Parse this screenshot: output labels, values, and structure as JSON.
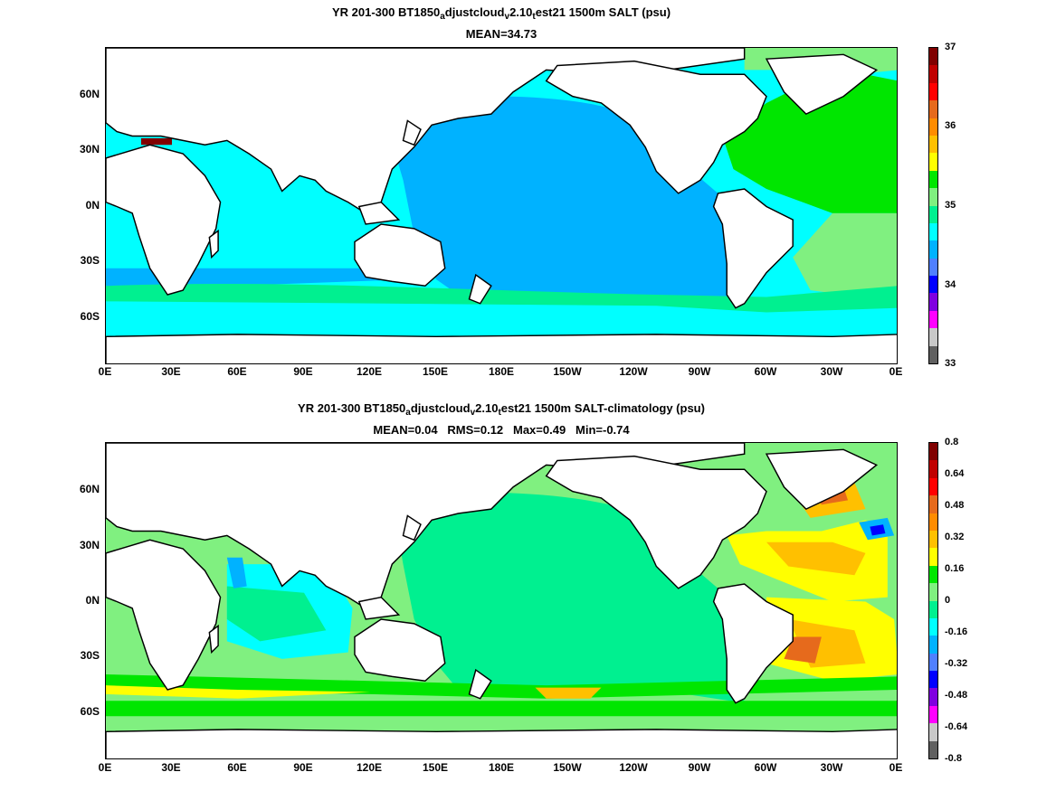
{
  "panels": [
    {
      "title_parts": [
        "YR 201-300 BT1850",
        "a",
        "djustcloud",
        "v",
        "2.10",
        "t",
        "est21 1500m SALT (psu)"
      ],
      "subtitle": "MEAN=34.73",
      "x_ticks": [
        "0E",
        "30E",
        "60E",
        "90E",
        "120E",
        "150E",
        "180E",
        "150W",
        "120W",
        "90W",
        "60W",
        "30W",
        "0E"
      ],
      "y_ticks": [
        "60N",
        "30N",
        "0N",
        "30S",
        "60S"
      ],
      "colorbar": {
        "ticks": [
          "37",
          "36",
          "35",
          "34",
          "33"
        ],
        "colors": [
          "#800000",
          "#c00000",
          "#ff0000",
          "#e66a1c",
          "#ff8c00",
          "#ffc000",
          "#ffff00",
          "#00e600",
          "#80f080",
          "#00f090",
          "#00ffff",
          "#00b2ff",
          "#5080ff",
          "#0000ff",
          "#8000e0",
          "#ff00ff",
          "#c8c8c8",
          "#606060"
        ]
      }
    },
    {
      "title_parts": [
        "YR 201-300 BT1850",
        "a",
        "djustcloud",
        "v",
        "2.10",
        "t",
        "est21 1500m SALT-climatology (psu)"
      ],
      "subtitle": "MEAN=0.04   RMS=0.12   Max=0.49   Min=-0.74",
      "x_ticks": [
        "0E",
        "30E",
        "60E",
        "90E",
        "120E",
        "150E",
        "180E",
        "150W",
        "120W",
        "90W",
        "60W",
        "30W",
        "0E"
      ],
      "y_ticks": [
        "60N",
        "30N",
        "0N",
        "30S",
        "60S"
      ],
      "colorbar": {
        "ticks": [
          "0.8",
          "0.64",
          "0.48",
          "0.32",
          "0.16",
          "0",
          "-0.16",
          "-0.32",
          "-0.48",
          "-0.64",
          "-0.8"
        ],
        "colors": [
          "#800000",
          "#c00000",
          "#ff0000",
          "#e66a1c",
          "#ff8c00",
          "#ffc000",
          "#ffff00",
          "#00e600",
          "#80f080",
          "#00f090",
          "#00ffff",
          "#00b2ff",
          "#5080ff",
          "#0000ff",
          "#8000e0",
          "#ff00ff",
          "#c8c8c8",
          "#606060"
        ]
      }
    }
  ]
}
